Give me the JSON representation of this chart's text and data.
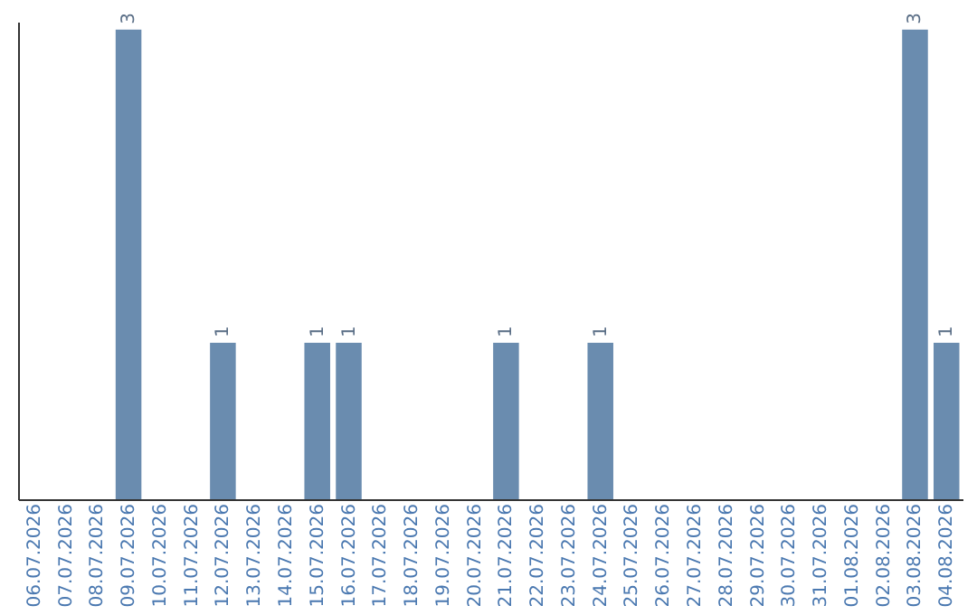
{
  "chart_data": {
    "type": "bar",
    "categories": [
      "06.07.2026",
      "07.07.2026",
      "08.07.2026",
      "09.07.2026",
      "10.07.2026",
      "11.07.2026",
      "12.07.2026",
      "13.07.2026",
      "14.07.2026",
      "15.07.2026",
      "16.07.2026",
      "17.07.2026",
      "18.07.2026",
      "19.07.2026",
      "20.07.2026",
      "21.07.2026",
      "22.07.2026",
      "23.07.2026",
      "24.07.2026",
      "25.07.2026",
      "26.07.2026",
      "27.07.2026",
      "28.07.2026",
      "29.07.2026",
      "30.07.2026",
      "31.07.2026",
      "01.08.2026",
      "02.08.2026",
      "03.08.2026",
      "04.08.2026"
    ],
    "values": [
      0,
      0,
      0,
      3,
      0,
      0,
      1,
      0,
      0,
      1,
      1,
      0,
      0,
      0,
      0,
      1,
      0,
      0,
      1,
      0,
      0,
      0,
      0,
      0,
      0,
      0,
      0,
      0,
      3,
      1
    ],
    "value_labels": [
      null,
      null,
      null,
      "3",
      null,
      null,
      "1",
      null,
      null,
      "1",
      "1",
      null,
      null,
      null,
      null,
      "1",
      null,
      null,
      "1",
      null,
      null,
      null,
      null,
      null,
      null,
      null,
      null,
      null,
      "3",
      "1"
    ],
    "color": "#6a8caf",
    "ylim": [
      0,
      3.05
    ],
    "tick_labels": "x",
    "grid": false
  }
}
